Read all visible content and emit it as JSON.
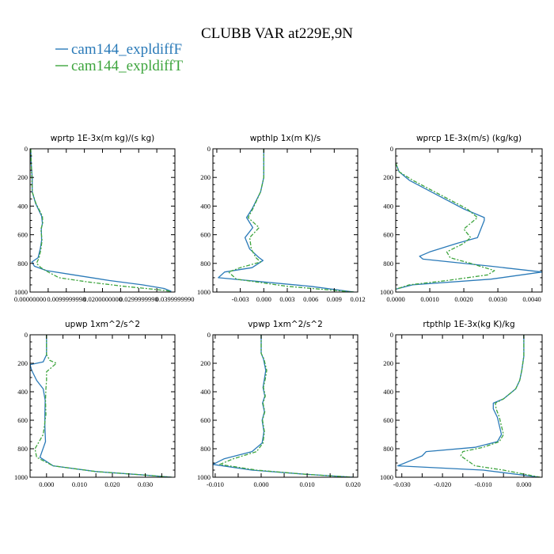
{
  "title": "CLUBB VAR at229E,9N",
  "legend": [
    {
      "name": "cam144_expldiffF",
      "color": "#2a7ab8"
    },
    {
      "name": "cam144_expldiffT",
      "color": "#3ea53e"
    }
  ],
  "chart_data": [
    {
      "type": "line",
      "title": "wprtp  1E-3x(m kg)/(s kg)",
      "xlim": [
        0,
        0.04
      ],
      "ylim": [
        1000,
        0
      ],
      "xticks": [
        0,
        0.005,
        0.01,
        0.015,
        0.02,
        0.025,
        0.03,
        0.035,
        0.04
      ],
      "xtick_labels": [
        "0.00000000",
        "0.0099999998",
        "0.0200000000",
        "0.0299999990",
        "0.0399999990"
      ],
      "xtick_label_values": [
        0,
        0.01,
        0.02,
        0.03,
        0.04
      ],
      "yticks": [
        0,
        200,
        400,
        600,
        800,
        1000
      ],
      "ytick_labels": [
        "0",
        "200",
        "400",
        "600",
        "800",
        "1000"
      ],
      "series": [
        {
          "name": "cam144_expldiffF",
          "x": [
            0.0002,
            0.0003,
            0.0006,
            0.0006,
            0.0015,
            0.0032,
            0.0034,
            0.0031,
            0.0032,
            0.0028,
            0.0022,
            0.0005,
            0.0012,
            0.0045,
            0.012,
            0.022,
            0.031,
            0.037,
            0.039
          ],
          "y": [
            0,
            100,
            200,
            300,
            380,
            470,
            520,
            560,
            640,
            700,
            760,
            790,
            820,
            850,
            880,
            920,
            950,
            975,
            995
          ]
        },
        {
          "name": "cam144_expldiffT",
          "x": [
            0.0002,
            0.0003,
            0.0005,
            0.0006,
            0.0016,
            0.0034,
            0.0035,
            0.003,
            0.0033,
            0.003,
            0.0025,
            0.0018,
            0.003,
            0.005,
            0.008,
            0.016,
            0.026,
            0.034,
            0.039
          ],
          "y": [
            0,
            100,
            200,
            300,
            380,
            470,
            520,
            560,
            640,
            700,
            760,
            800,
            830,
            860,
            900,
            930,
            960,
            980,
            995
          ]
        }
      ]
    },
    {
      "type": "line",
      "title": "wpthlp  1x(m K)/s",
      "xlim": [
        -0.0065,
        0.012
      ],
      "ylim": [
        1000,
        0
      ],
      "xticks": [
        -0.006,
        -0.003,
        0,
        0.003,
        0.006,
        0.009,
        0.012
      ],
      "xtick_labels": [
        "-0.003",
        "0.000",
        "0.003",
        "0.006",
        "0.009",
        "0.012"
      ],
      "xtick_label_values": [
        -0.003,
        0,
        0.003,
        0.006,
        0.009,
        0.012
      ],
      "yticks": [
        0,
        200,
        400,
        600,
        800,
        1000
      ],
      "ytick_labels": [
        "0",
        "200",
        "400",
        "600",
        "800",
        "1000"
      ],
      "series": [
        {
          "name": "cam144_expldiffF",
          "x": [
            0,
            0,
            0,
            -0.0002,
            -0.0004,
            -0.0015,
            -0.0022,
            -0.0014,
            -0.0024,
            -0.0018,
            -0.0006,
            -0.0001,
            -0.0015,
            -0.005,
            -0.0058,
            0.006,
            0.0115
          ],
          "y": [
            0,
            100,
            200,
            250,
            300,
            420,
            480,
            550,
            620,
            700,
            760,
            780,
            830,
            860,
            900,
            960,
            1000
          ]
        },
        {
          "name": "cam144_expldiffT",
          "x": [
            0,
            0,
            0,
            -0.0002,
            -0.0004,
            -0.0014,
            -0.002,
            -0.0006,
            -0.0018,
            -0.0016,
            -0.001,
            -0.0004,
            -0.003,
            -0.0045,
            -0.0035,
            0.003,
            0.0115
          ],
          "y": [
            0,
            100,
            200,
            250,
            300,
            420,
            480,
            550,
            620,
            700,
            760,
            790,
            830,
            860,
            910,
            960,
            1000
          ]
        }
      ]
    },
    {
      "type": "line",
      "title": "wprcp  1E-3x(m/s) (kg/kg)",
      "xlim": [
        0,
        0.0043
      ],
      "ylim": [
        1000,
        0
      ],
      "xticks": [
        0,
        0.001,
        0.002,
        0.003,
        0.004
      ],
      "xtick_labels": [
        "0.0000",
        "0.0010",
        "0.0020",
        "0.0030",
        "0.0040"
      ],
      "xtick_label_values": [
        0,
        0.001,
        0.002,
        0.003,
        0.004
      ],
      "yticks": [
        0,
        200,
        400,
        600,
        800,
        1000
      ],
      "ytick_labels": [
        "0",
        "200",
        "400",
        "600",
        "800",
        "1000"
      ],
      "series": [
        {
          "name": "cam144_expldiffF",
          "x": [
            0,
            0.0001,
            0.0004,
            0.0012,
            0.002,
            0.0026,
            0.0026,
            0.0025,
            0.0024,
            0.0018,
            0.001,
            0.0007,
            0.0008,
            0.0028,
            0.0043,
            0.0028,
            0.0005,
            0
          ],
          "y": [
            100,
            160,
            220,
            320,
            420,
            480,
            500,
            560,
            620,
            660,
            720,
            750,
            770,
            820,
            860,
            910,
            950,
            980
          ]
        },
        {
          "name": "cam144_expldiffT",
          "x": [
            0,
            0.0001,
            0.0005,
            0.0013,
            0.0021,
            0.0024,
            0.002,
            0.0022,
            0.002,
            0.0015,
            0.0016,
            0.0022,
            0.0029,
            0.0027,
            0.0015,
            0.0004,
            0
          ],
          "y": [
            100,
            160,
            220,
            320,
            420,
            480,
            560,
            620,
            660,
            720,
            760,
            800,
            850,
            880,
            920,
            950,
            980
          ]
        }
      ]
    },
    {
      "type": "line",
      "title": "upwp  1xm^2/s^2",
      "xlim": [
        -0.005,
        0.039
      ],
      "ylim": [
        1000,
        0
      ],
      "xticks": [
        -0.005,
        0,
        0.005,
        0.01,
        0.015,
        0.02,
        0.025,
        0.03,
        0.035
      ],
      "xtick_labels": [
        "0.000",
        "0.010",
        "0.020",
        "0.030"
      ],
      "xtick_label_values": [
        0,
        0.01,
        0.02,
        0.03
      ],
      "yticks": [
        0,
        200,
        400,
        600,
        800,
        1000
      ],
      "ytick_labels": [
        "0",
        "200",
        "400",
        "600",
        "800",
        "1000"
      ],
      "series": [
        {
          "name": "cam144_expldiffF",
          "x": [
            0,
            0,
            -0.001,
            -0.005,
            -0.0045,
            -0.003,
            -0.001,
            -0.0004,
            -0.0005,
            -0.0005,
            -0.0003,
            -0.002,
            0.002,
            0.015,
            0.03,
            0.038
          ],
          "y": [
            0,
            140,
            190,
            210,
            250,
            320,
            380,
            460,
            560,
            640,
            750,
            860,
            920,
            960,
            985,
            1000
          ]
        },
        {
          "name": "cam144_expldiffT",
          "x": [
            0,
            0,
            0.001,
            0.003,
            0,
            0,
            -0.0002,
            -0.0003,
            -0.0002,
            -0.001,
            -0.0035,
            -0.003,
            0.002,
            0.015,
            0.03,
            0.038
          ],
          "y": [
            0,
            140,
            180,
            200,
            260,
            320,
            380,
            460,
            560,
            700,
            800,
            860,
            920,
            960,
            985,
            1000
          ]
        }
      ]
    },
    {
      "type": "line",
      "title": "vpwp  1xm^2/s^2",
      "xlim": [
        -0.0105,
        0.021
      ],
      "ylim": [
        1000,
        0
      ],
      "xticks": [
        -0.01,
        -0.005,
        0,
        0.005,
        0.01,
        0.015,
        0.02
      ],
      "xtick_labels": [
        "-0.010",
        "0.000",
        "0.010",
        "0.020"
      ],
      "xtick_label_values": [
        -0.01,
        0,
        0.01,
        0.02
      ],
      "yticks": [
        0,
        200,
        400,
        600,
        800,
        1000
      ],
      "ytick_labels": [
        "0",
        "200",
        "400",
        "600",
        "800",
        "1000"
      ],
      "series": [
        {
          "name": "cam144_expldiffF",
          "x": [
            0,
            0,
            0.0005,
            0.001,
            0.0007,
            0.0004,
            0.0008,
            0.0003,
            0.0007,
            0.0002,
            0.0006,
            0.0002,
            -0.002,
            -0.008,
            -0.0105,
            -0.002,
            0.01,
            0.02
          ],
          "y": [
            0,
            130,
            170,
            250,
            310,
            370,
            430,
            480,
            540,
            600,
            680,
            760,
            820,
            870,
            910,
            950,
            980,
            1000
          ]
        },
        {
          "name": "cam144_expldiffT",
          "x": [
            0,
            0,
            0.0006,
            0.0012,
            0.0009,
            0.0005,
            0.0009,
            0.0004,
            0.0008,
            0.0003,
            0.0007,
            0.0004,
            -0.001,
            -0.006,
            -0.009,
            -0.001,
            0.01,
            0.02
          ],
          "y": [
            0,
            130,
            170,
            250,
            310,
            370,
            430,
            480,
            540,
            600,
            680,
            760,
            820,
            870,
            910,
            950,
            980,
            1000
          ]
        }
      ]
    },
    {
      "type": "line",
      "title": "rtpthlp  1E-3x(kg K)/kg",
      "xlim": [
        -0.0315,
        0.0045
      ],
      "ylim": [
        1000,
        0
      ],
      "xticks": [
        -0.03,
        -0.025,
        -0.02,
        -0.015,
        -0.01,
        -0.005,
        0
      ],
      "xtick_labels": [
        "-0.030",
        "-0.020",
        "-0.010",
        "0.000"
      ],
      "xtick_label_values": [
        -0.03,
        -0.02,
        -0.01,
        0
      ],
      "yticks": [
        0,
        200,
        400,
        600,
        800,
        1000
      ],
      "ytick_labels": [
        "0",
        "200",
        "400",
        "600",
        "800",
        "1000"
      ],
      "series": [
        {
          "name": "cam144_expldiffF",
          "x": [
            0,
            0,
            -0.0005,
            -0.001,
            -0.002,
            -0.005,
            -0.0075,
            -0.0075,
            -0.0065,
            -0.0055,
            -0.0065,
            -0.012,
            -0.024,
            -0.025,
            -0.031,
            -0.01,
            0.004
          ],
          "y": [
            0,
            150,
            250,
            320,
            380,
            450,
            480,
            520,
            580,
            700,
            750,
            790,
            820,
            850,
            920,
            950,
            1000
          ]
        },
        {
          "name": "cam144_expldiffT",
          "x": [
            0,
            0,
            -0.0005,
            -0.001,
            -0.002,
            -0.005,
            -0.007,
            -0.0068,
            -0.006,
            -0.005,
            -0.006,
            -0.01,
            -0.015,
            -0.0155,
            -0.012,
            -0.005,
            0.004
          ],
          "y": [
            0,
            150,
            250,
            320,
            380,
            450,
            480,
            520,
            580,
            700,
            750,
            790,
            820,
            850,
            920,
            950,
            1000
          ]
        }
      ]
    }
  ]
}
